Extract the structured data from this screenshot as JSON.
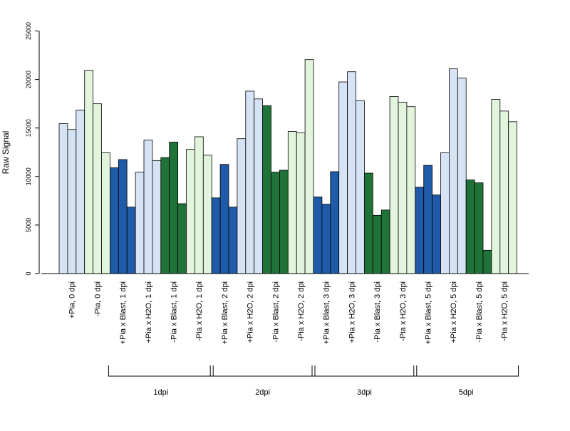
{
  "chart_data": {
    "type": "bar",
    "title": "",
    "ylabel": "Raw Signal",
    "ylim": [
      0,
      25000
    ],
    "yticks": [
      0,
      5000,
      10000,
      15000,
      20000,
      25000
    ],
    "grid": false,
    "replicates_per_category": 3,
    "categories": [
      "+Pia, 0 dpi",
      "-Pia, 0 dpi",
      "+Pia x Blast, 1 dpi",
      "+Pia x H2O, 1 dpi",
      "-Pia x Blast, 1 dpi",
      "-Pia x H2O, 1 dpi",
      "+Pia x Blast, 2 dpi",
      "+Pia x H2O, 2 dpi",
      "-Pia x Blast, 2 dpi",
      "-Pia x H2O, 2 dpi",
      "+Pia x Blast, 3 dpi",
      "+Pia x H2O, 3 dpi",
      "-Pia x Blast, 3 dpi",
      "-Pia x H2O, 3 dpi",
      "+Pia x Blast, 5 dpi",
      "+Pia x H2O, 5 dpi",
      "-Pia x Blast, 5 dpi",
      "-Pia x H2O, 5 dpi"
    ],
    "values": [
      [
        15450,
        14850,
        16850
      ],
      [
        20950,
        17500,
        12450
      ],
      [
        10900,
        11750,
        6850
      ],
      [
        10450,
        13750,
        11650
      ],
      [
        11950,
        13550,
        7200
      ],
      [
        12800,
        14100,
        12200
      ],
      [
        7800,
        11250,
        6850
      ],
      [
        13900,
        18800,
        18000
      ],
      [
        17300,
        10450,
        10650
      ],
      [
        14650,
        14500,
        22050
      ],
      [
        7900,
        7150,
        10500
      ],
      [
        19750,
        20800,
        17800
      ],
      [
        10350,
        6000,
        6550
      ],
      [
        18250,
        17650,
        17200
      ],
      [
        8900,
        11150,
        8100
      ],
      [
        12450,
        21100,
        20150
      ],
      [
        9650,
        9350,
        2400
      ],
      [
        17950,
        16750,
        15650
      ]
    ],
    "category_colors": [
      "#d5e3f4",
      "#e2f5dc",
      "#1f5ba8",
      "#d5e3f4",
      "#207338",
      "#e2f5dc",
      "#1f5ba8",
      "#d5e3f4",
      "#207338",
      "#e2f5dc",
      "#1f5ba8",
      "#d5e3f4",
      "#207338",
      "#e2f5dc",
      "#1f5ba8",
      "#d5e3f4",
      "#207338",
      "#e2f5dc"
    ],
    "groups": [
      {
        "label": "1dpi",
        "first_category": 2,
        "last_category": 5
      },
      {
        "label": "2dpi",
        "first_category": 6,
        "last_category": 9
      },
      {
        "label": "3dpi",
        "first_category": 10,
        "last_category": 13
      },
      {
        "label": "5dpi",
        "first_category": 14,
        "last_category": 17
      }
    ]
  }
}
